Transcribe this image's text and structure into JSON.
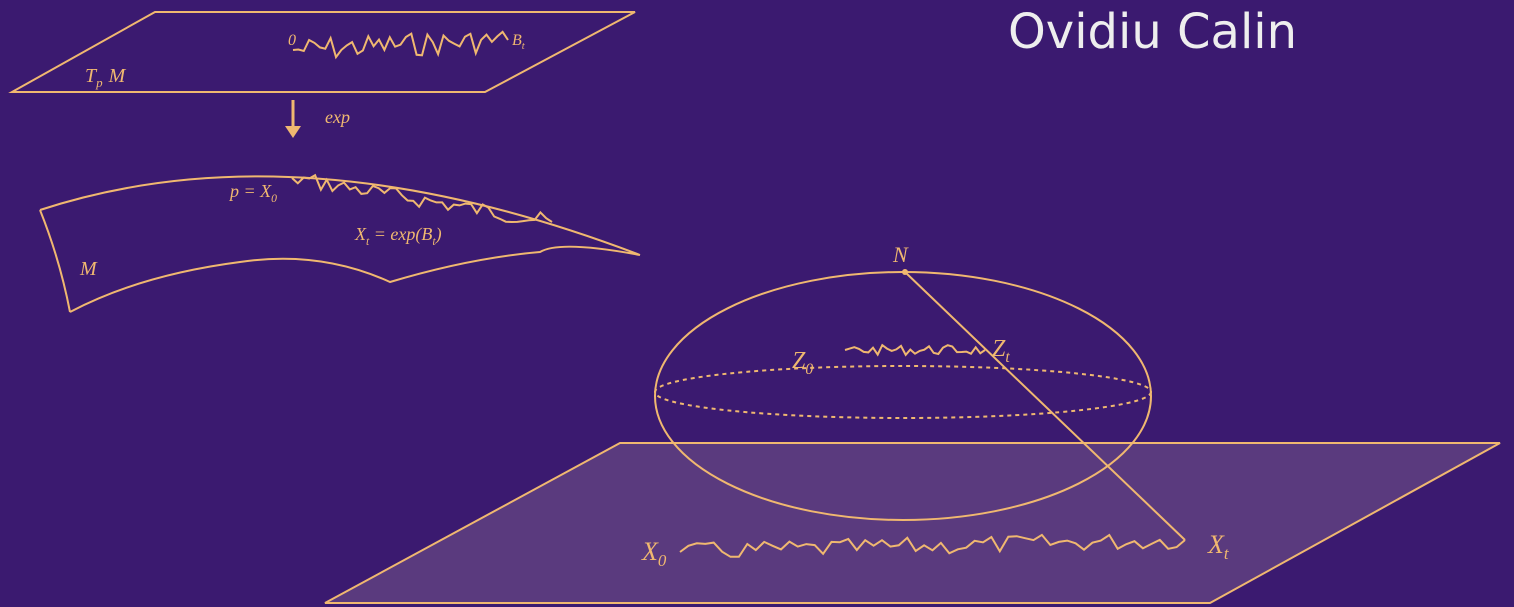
{
  "title": "Ovidiu Calin",
  "tangent_plane": {
    "label": {
      "base": "T",
      "sub": "p",
      "rest": "M"
    },
    "origin": "0",
    "endpoint": {
      "base": "B",
      "sub": "t"
    }
  },
  "map_label": "exp",
  "manifold": {
    "label": "M",
    "start": {
      "base": "p = X",
      "sub": "0"
    },
    "endpoint": {
      "base": "X",
      "sub": "t",
      "rest": " = exp(B",
      "sub2": "t",
      "rest2": ")"
    }
  },
  "sphere": {
    "pole": "N",
    "start": {
      "base": "Z",
      "sub": "0"
    },
    "endpoint": {
      "base": "Z",
      "sub": "t"
    }
  },
  "plane": {
    "start": {
      "base": "X",
      "sub": "0"
    },
    "endpoint": {
      "base": "X",
      "sub": "t"
    }
  }
}
